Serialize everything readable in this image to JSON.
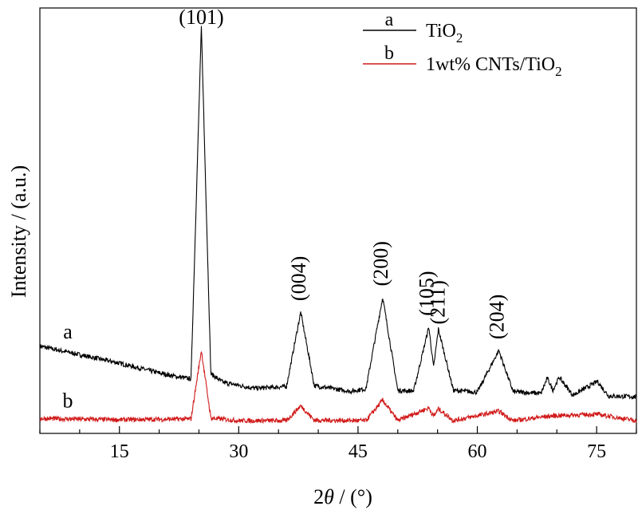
{
  "chart_data": {
    "type": "line",
    "xlabel_prefix": "2",
    "xlabel_symbol": "θ",
    "xlabel_suffix": " / (°)",
    "ylabel": "Intensity / (a.u.)",
    "xlim": [
      5,
      80
    ],
    "ylim": [
      0,
      100
    ],
    "xticks": [
      15,
      30,
      45,
      60,
      75
    ],
    "yticks": [],
    "grid": false,
    "legend_placement": "top-right",
    "legend": [
      {
        "letter": "a",
        "name_main": "TiO",
        "name_sub": "2",
        "color": "#000000"
      },
      {
        "letter": "b",
        "name_main": "1wt% CNTs/TiO",
        "name_sub": "2",
        "color": "#d11a1a"
      }
    ],
    "series": [
      {
        "curve_label": "a",
        "name": "TiO2",
        "color": "#000000",
        "x": [
          5,
          10,
          15,
          20,
          22,
          24,
          25.3,
          26.5,
          28,
          32,
          36,
          37.8,
          39.5,
          44,
          46,
          48.1,
          50,
          52,
          53.9,
          54.5,
          55.1,
          57,
          60,
          62.7,
          64.5,
          68,
          68.8,
          69.5,
          70.3,
          72,
          75.1,
          76.5,
          80
        ],
        "y": [
          20.5,
          18.5,
          16.5,
          14.2,
          13.4,
          12.8,
          95.5,
          14.0,
          12.0,
          10.6,
          11.0,
          28.5,
          11.2,
          9.9,
          10.5,
          32.0,
          10.1,
          10.0,
          25.0,
          15.5,
          24.5,
          10.1,
          9.7,
          19.5,
          9.8,
          9.4,
          13.0,
          10.2,
          13.2,
          9.0,
          12.2,
          8.8,
          8.6
        ]
      },
      {
        "curve_label": "b",
        "name": "1wt% CNTs/TiO2",
        "color": "#d11a1a",
        "x": [
          5,
          15,
          24,
          25.3,
          26.5,
          30,
          36,
          37.8,
          39.5,
          46,
          48.1,
          50,
          53.9,
          54.5,
          55.1,
          57,
          62.7,
          64.5,
          68.8,
          70.3,
          75.1,
          80
        ],
        "y": [
          3.5,
          3.2,
          3.4,
          19.5,
          3.6,
          3.0,
          3.0,
          6.5,
          3.1,
          3.0,
          7.8,
          3.0,
          6.0,
          4.0,
          5.8,
          3.0,
          5.2,
          3.0,
          4.0,
          4.2,
          4.5,
          3.0
        ]
      }
    ],
    "annotations": [
      {
        "text": "(101)",
        "x": 25.3,
        "rotate": false
      },
      {
        "text": "(004)",
        "x": 37.8,
        "rotate": true
      },
      {
        "text": "(200)",
        "x": 48.1,
        "rotate": true
      },
      {
        "text": "(105)",
        "x": 53.9,
        "rotate": true
      },
      {
        "text": "(211)",
        "x": 55.3,
        "rotate": true
      },
      {
        "text": "(204)",
        "x": 62.7,
        "rotate": true
      }
    ]
  }
}
